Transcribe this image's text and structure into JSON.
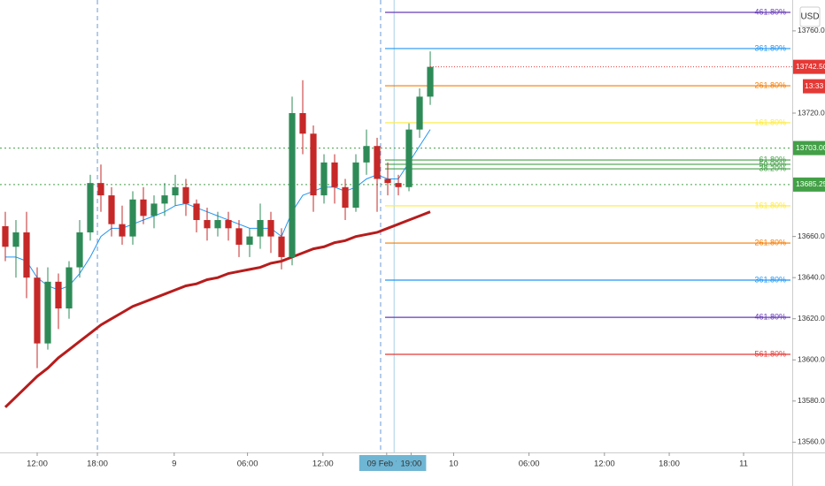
{
  "chart_data": {
    "type": "candlestick",
    "currency": "USD",
    "x": [
      0,
      1,
      2,
      3,
      4,
      5,
      6,
      7,
      8,
      9,
      10,
      11,
      12,
      13,
      14,
      15,
      16,
      17,
      18,
      19,
      20,
      21,
      22,
      23,
      24,
      25,
      26,
      27,
      28,
      29,
      30,
      31,
      32,
      33,
      34,
      35,
      36,
      37,
      38,
      39,
      40
    ],
    "open": [
      13665,
      13655,
      13662,
      13640,
      13608,
      13638,
      13625,
      13645,
      13662,
      13686,
      13680,
      13666,
      13660,
      13678,
      13670,
      13676,
      13680,
      13684,
      13676,
      13668,
      13664,
      13668,
      13664,
      13656,
      13660,
      13668,
      13660,
      13650,
      13720,
      13710,
      13680,
      13696,
      13684,
      13674,
      13696,
      13704,
      13688,
      13686,
      13684,
      13712,
      13728
    ],
    "high": [
      13672,
      13668,
      13672,
      13645,
      13645,
      13642,
      13648,
      13668,
      13690,
      13695,
      13684,
      13675,
      13682,
      13684,
      13680,
      13686,
      13690,
      13688,
      13678,
      13674,
      13672,
      13672,
      13668,
      13664,
      13676,
      13672,
      13664,
      13728,
      13736,
      13714,
      13700,
      13700,
      13688,
      13700,
      13712,
      13708,
      13696,
      13690,
      13715,
      13732,
      13750
    ],
    "low": [
      13648,
      13640,
      13630,
      13596,
      13605,
      13615,
      13620,
      13640,
      13658,
      13672,
      13660,
      13656,
      13656,
      13666,
      13664,
      13670,
      13675,
      13670,
      13662,
      13658,
      13660,
      13658,
      13650,
      13650,
      13654,
      13652,
      13644,
      13646,
      13700,
      13672,
      13676,
      13676,
      13668,
      13672,
      13690,
      13672,
      13680,
      13680,
      13682,
      13708,
      13724
    ],
    "close": [
      13655,
      13662,
      13640,
      13608,
      13638,
      13625,
      13645,
      13662,
      13686,
      13680,
      13666,
      13660,
      13678,
      13670,
      13676,
      13680,
      13684,
      13676,
      13668,
      13664,
      13668,
      13664,
      13656,
      13660,
      13668,
      13660,
      13650,
      13720,
      13710,
      13680,
      13696,
      13684,
      13674,
      13696,
      13704,
      13688,
      13686,
      13684,
      13712,
      13728,
      13742.5
    ],
    "up_color": "#2e8b57",
    "down_color": "#c62828",
    "ema": {
      "color": "#2196f3",
      "values": [
        13650,
        13650,
        13648,
        13640,
        13636,
        13634,
        13636,
        13642,
        13650,
        13660,
        13664,
        13664,
        13666,
        13668,
        13670,
        13672,
        13675,
        13676,
        13674,
        13672,
        13670,
        13668,
        13666,
        13664,
        13664,
        13664,
        13660,
        13672,
        13680,
        13682,
        13684,
        13684,
        13682,
        13684,
        13688,
        13690,
        13688,
        13688,
        13696,
        13704,
        13712
      ]
    },
    "ma": {
      "color": "#b71c1c",
      "values": [
        13577,
        13582,
        13587,
        13592,
        13596,
        13601,
        13605,
        13609,
        13613,
        13617,
        13620,
        13623,
        13626,
        13628,
        13630,
        13632,
        13634,
        13636,
        13637,
        13639,
        13640,
        13642,
        13643,
        13644,
        13645,
        13647,
        13648,
        13650,
        13652,
        13654,
        13655,
        13657,
        13658,
        13660,
        13661,
        13662,
        13664,
        13666,
        13668,
        13670,
        13672
      ]
    },
    "xlim": [
      -0.5,
      72.83
    ],
    "ylim": [
      13555,
      13775
    ],
    "yticks": [
      {
        "value": 13560,
        "label": "13560.00"
      },
      {
        "value": 13580,
        "label": "13580.00"
      },
      {
        "value": 13600,
        "label": "13600.00"
      },
      {
        "value": 13620,
        "label": "13620.00"
      },
      {
        "value": 13640,
        "label": "13640.00"
      },
      {
        "value": 13660,
        "label": "13660.00"
      },
      {
        "value": 13720,
        "label": "13720.00"
      },
      {
        "value": 13760,
        "label": "13760.00"
      }
    ],
    "xticks": [
      {
        "value": 3.0,
        "label": "12:00"
      },
      {
        "value": 8.67,
        "label": "18:00"
      },
      {
        "value": 15.9,
        "label": "9"
      },
      {
        "value": 22.8,
        "label": "06:00"
      },
      {
        "value": 29.9,
        "label": "12:00"
      },
      {
        "value": 35.9,
        "label": "09 Feb '21",
        "highlight": true
      },
      {
        "value": 38.2,
        "label": "19:00",
        "highlight": true
      },
      {
        "value": 42.2,
        "label": "10"
      },
      {
        "value": 49.3,
        "label": "06:00"
      },
      {
        "value": 56.4,
        "label": "12:00"
      },
      {
        "value": 62.5,
        "label": "18:00"
      },
      {
        "value": 69.5,
        "label": "11"
      }
    ],
    "vlines": [
      8.67,
      35.33
    ],
    "cursor_x": 36.6,
    "fib_start": 35.75,
    "fib_levels": [
      {
        "label": "461.80%",
        "value": 13769.0,
        "color": "#673ab7"
      },
      {
        "label": "361.80%",
        "value": 13751.4,
        "color": "#2196f3"
      },
      {
        "label": "261.80%",
        "value": 13733.3,
        "color": "#f57c00"
      },
      {
        "label": "161.80%",
        "value": 13715.3,
        "color": "#ffeb3b"
      },
      {
        "label": "61.80%",
        "value": 13697.2,
        "color": "#43a047"
      },
      {
        "label": "50.00%",
        "value": 13695.1,
        "color": "#43a047"
      },
      {
        "label": "38.20%",
        "value": 13692.9,
        "color": "#43a047"
      },
      {
        "label": "161.80%",
        "value": 13674.9,
        "color": "#ffeb3b"
      },
      {
        "label": "261.80%",
        "value": 13656.8,
        "color": "#f57c00"
      },
      {
        "label": "361.80%",
        "value": 13638.8,
        "color": "#2196f3"
      },
      {
        "label": "461.80%",
        "value": 13620.7,
        "color": "#673ab7"
      },
      {
        "label": "561.80%",
        "value": 13602.7,
        "color": "#e53935"
      }
    ],
    "price_lines": [
      {
        "value": 13703,
        "label": "13703.00",
        "color": "#43a047"
      },
      {
        "value": 13685.25,
        "label": "13685.25",
        "color": "#43a047"
      }
    ],
    "last_price": {
      "value": 13742.5,
      "label": "13742.50",
      "countdown": "13:33",
      "color": "#e53935"
    }
  }
}
